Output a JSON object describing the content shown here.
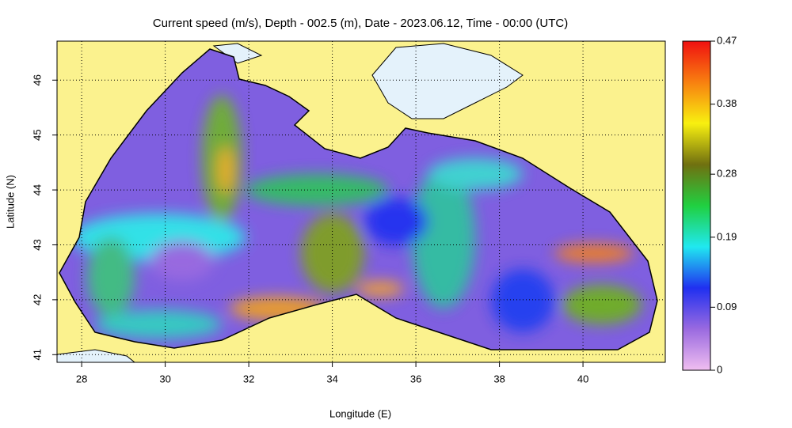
{
  "chart_data": {
    "type": "map",
    "title": "Current speed (m/s), Depth - 002.5 (m), Date - 2023.06.12, Time - 00:00 (UTC)",
    "x_label": "Longitude (E)",
    "y_label": "Latitude (N)",
    "xlim": [
      27.41,
      41.97
    ],
    "ylim": [
      40.86,
      46.71
    ],
    "xticks": [
      28,
      30,
      32,
      34,
      36,
      38,
      40
    ],
    "yticks": [
      41,
      42,
      43,
      44,
      45,
      46
    ],
    "grid": true,
    "colorbar": {
      "lim": [
        0,
        0.47
      ],
      "ticks": [
        0,
        0.09,
        0.19,
        0.28,
        0.38,
        0.47
      ],
      "colors": [
        "#f0bef0",
        "#9a6ae0",
        "#2030f0",
        "#20e8f0",
        "#20d040",
        "#707010",
        "#f8f010",
        "#f88010",
        "#f01010"
      ]
    }
  }
}
